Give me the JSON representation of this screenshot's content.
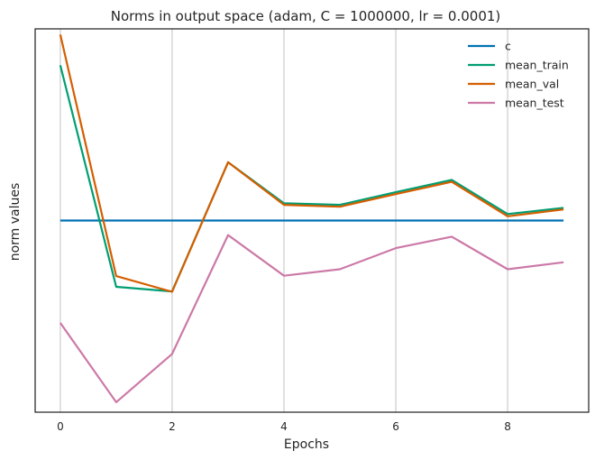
{
  "chart_data": {
    "type": "line",
    "title": "Norms in output space (adam, C = 1000000, lr = 0.0001)",
    "xlabel": "Epochs",
    "ylabel": "norm values",
    "x": [
      0,
      1,
      2,
      3,
      4,
      5,
      6,
      7,
      8,
      9
    ],
    "xticks": [
      0,
      2,
      4,
      6,
      8
    ],
    "xticklabels": [
      "0",
      "2",
      "4",
      "6",
      "8"
    ],
    "xlim": [
      -0.45,
      9.45
    ],
    "ylim": [
      0,
      1
    ],
    "y_ticklabels_shown": false,
    "grid": {
      "x": true,
      "y": false
    },
    "legend_position": "top-right",
    "series": [
      {
        "name": "c",
        "color": "#0072b2",
        "values": [
          0.5,
          0.5,
          0.5,
          0.5,
          0.5,
          0.5,
          0.5,
          0.5,
          0.5,
          0.5
        ]
      },
      {
        "name": "mean_train",
        "color": "#009e73",
        "values": [
          0.905,
          0.327,
          0.315,
          0.652,
          0.545,
          0.541,
          0.574,
          0.606,
          0.517,
          0.533
        ]
      },
      {
        "name": "mean_val",
        "color": "#d55e00",
        "values": [
          0.985,
          0.355,
          0.314,
          0.652,
          0.541,
          0.536,
          0.569,
          0.601,
          0.511,
          0.529
        ]
      },
      {
        "name": "mean_test",
        "color": "#cc79a7",
        "values": [
          0.233,
          0.026,
          0.152,
          0.462,
          0.356,
          0.373,
          0.428,
          0.458,
          0.373,
          0.391
        ]
      }
    ]
  }
}
